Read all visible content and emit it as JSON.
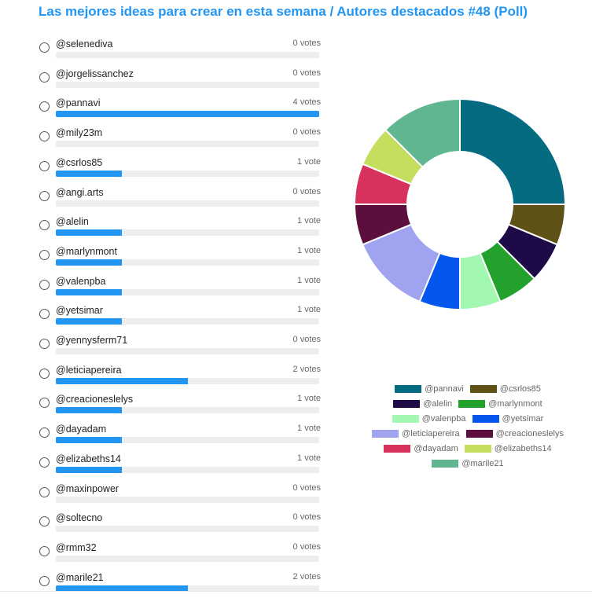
{
  "poll": {
    "title": "Las mejores ideas para crear en esta semana / Autores destacados #48 (Poll)"
  },
  "options": [
    {
      "name": "@selenediva",
      "votes": 0,
      "votes_label": "0 votes"
    },
    {
      "name": "@jorgelissanchez",
      "votes": 0,
      "votes_label": "0 votes"
    },
    {
      "name": "@pannavi",
      "votes": 4,
      "votes_label": "4 votes"
    },
    {
      "name": "@mily23m",
      "votes": 0,
      "votes_label": "0 votes"
    },
    {
      "name": "@csrlos85",
      "votes": 1,
      "votes_label": "1 vote"
    },
    {
      "name": "@angi.arts",
      "votes": 0,
      "votes_label": "0 votes"
    },
    {
      "name": "@alelin",
      "votes": 1,
      "votes_label": "1 vote"
    },
    {
      "name": "@marlynmont",
      "votes": 1,
      "votes_label": "1 vote"
    },
    {
      "name": "@valenpba",
      "votes": 1,
      "votes_label": "1 vote"
    },
    {
      "name": "@yetsimar",
      "votes": 1,
      "votes_label": "1 vote"
    },
    {
      "name": "@yennysferm71",
      "votes": 0,
      "votes_label": "0 votes"
    },
    {
      "name": "@leticiapereira",
      "votes": 2,
      "votes_label": "2 votes"
    },
    {
      "name": "@creacioneslelys",
      "votes": 1,
      "votes_label": "1 vote"
    },
    {
      "name": "@dayadam",
      "votes": 1,
      "votes_label": "1 vote"
    },
    {
      "name": "@elizabeths14",
      "votes": 1,
      "votes_label": "1 vote"
    },
    {
      "name": "@maxinpower",
      "votes": 0,
      "votes_label": "0 votes"
    },
    {
      "name": "@soltecno",
      "votes": 0,
      "votes_label": "0 votes"
    },
    {
      "name": "@rmm32",
      "votes": 0,
      "votes_label": "0 votes"
    },
    {
      "name": "@marile21",
      "votes": 2,
      "votes_label": "2 votes"
    }
  ],
  "max_votes": 4,
  "colors": {
    "title": "#2196f3",
    "bar": "#2196f3",
    "track": "#eeeeee"
  },
  "chart_data": {
    "type": "pie",
    "donut": true,
    "labels": [
      "@pannavi",
      "@csrlos85",
      "@alelin",
      "@marlynmont",
      "@valenpba",
      "@yetsimar",
      "@leticiapereira",
      "@creacioneslelys",
      "@dayadam",
      "@elizabeths14",
      "@marile21"
    ],
    "values": [
      4,
      1,
      1,
      1,
      1,
      1,
      2,
      1,
      1,
      1,
      2
    ],
    "colors": [
      "#056b80",
      "#5e5217",
      "#1f0a48",
      "#22a22c",
      "#a2f7b1",
      "#0356ee",
      "#a0a3f0",
      "#5c0f3c",
      "#d7325c",
      "#c5de5e",
      "#5fb68f"
    ],
    "legend_position": "bottom",
    "legend_rows": [
      [
        0,
        1
      ],
      [
        2,
        3
      ],
      [
        4,
        5
      ],
      [
        6,
        7
      ],
      [
        8,
        9
      ],
      [
        10
      ]
    ]
  }
}
